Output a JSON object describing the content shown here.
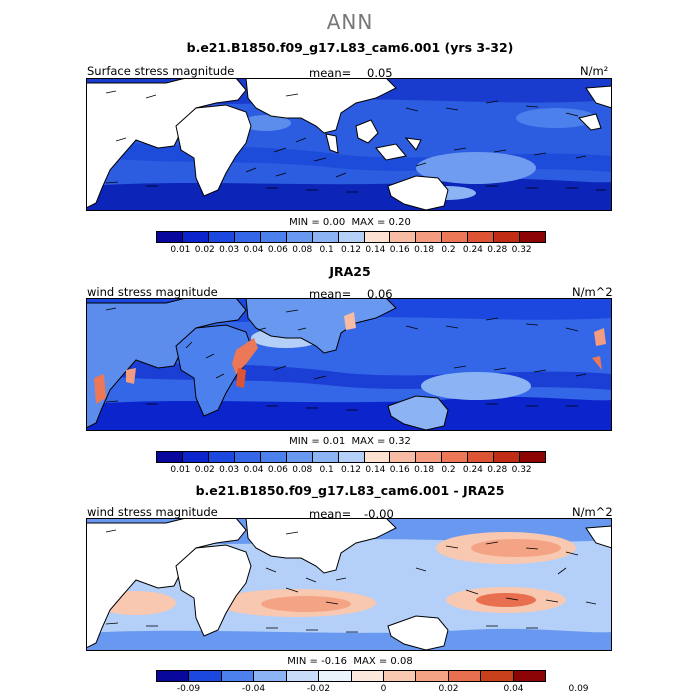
{
  "page_title": "ANN",
  "panels": [
    {
      "title": "b.e21.B1850.f09_g17.L83_cam6.001 (yrs 3-32)",
      "left_label": "Surface stress magnitude",
      "mean_label": "mean=",
      "mean_value": "0.05",
      "units": "N/m²",
      "min_label": "MIN =",
      "min_value": "0.00",
      "max_label": "MAX =",
      "max_value": "0.20",
      "colorbar_ticks": [
        "0.01",
        "0.02",
        "0.03",
        "0.04",
        "0.06",
        "0.08",
        "0.1",
        "0.12",
        "0.14",
        "0.16",
        "0.18",
        "0.2",
        "0.24",
        "0.28",
        "0.32"
      ]
    },
    {
      "title": "JRA25",
      "left_label": "wind stress magnitude",
      "mean_label": "mean=",
      "mean_value": "0.06",
      "units": "N/m^2",
      "min_label": "MIN =",
      "min_value": "0.01",
      "max_label": "MAX =",
      "max_value": "0.32",
      "colorbar_ticks": [
        "0.01",
        "0.02",
        "0.03",
        "0.04",
        "0.06",
        "0.08",
        "0.1",
        "0.12",
        "0.14",
        "0.16",
        "0.18",
        "0.2",
        "0.24",
        "0.28",
        "0.32"
      ]
    },
    {
      "title": "b.e21.B1850.f09_g17.L83_cam6.001 - JRA25",
      "left_label": "wind stress magnitude",
      "mean_label": "mean=",
      "mean_value": "-0.00",
      "units": "N/m^2",
      "min_label": "MIN =",
      "min_value": "-0.16",
      "max_label": "MAX =",
      "max_value": "0.08",
      "colorbar_ticks": [
        "-0.09",
        "-0.04",
        "-0.02",
        "0",
        "0.02",
        "0.04",
        "0.09"
      ]
    }
  ],
  "colors": {
    "seq_scale": [
      "#08089c",
      "#0c24cc",
      "#1c48e0",
      "#3466e8",
      "#4c80ec",
      "#6898f0",
      "#8cb4f4",
      "#b4d0f8",
      "#fce0d0",
      "#f8bca4",
      "#f49c80",
      "#ec7858",
      "#dc5434",
      "#c02c14",
      "#8c0404"
    ],
    "diff_scale": [
      "#08089c",
      "#1c48e0",
      "#4c80ec",
      "#8cb4f4",
      "#c8dcfa",
      "#eaf2fc",
      "#fce8dc",
      "#f8c8b0",
      "#f4a484",
      "#e87050",
      "#c8401c",
      "#8c0404"
    ],
    "land": "#ffffff",
    "coast": "#000000"
  }
}
